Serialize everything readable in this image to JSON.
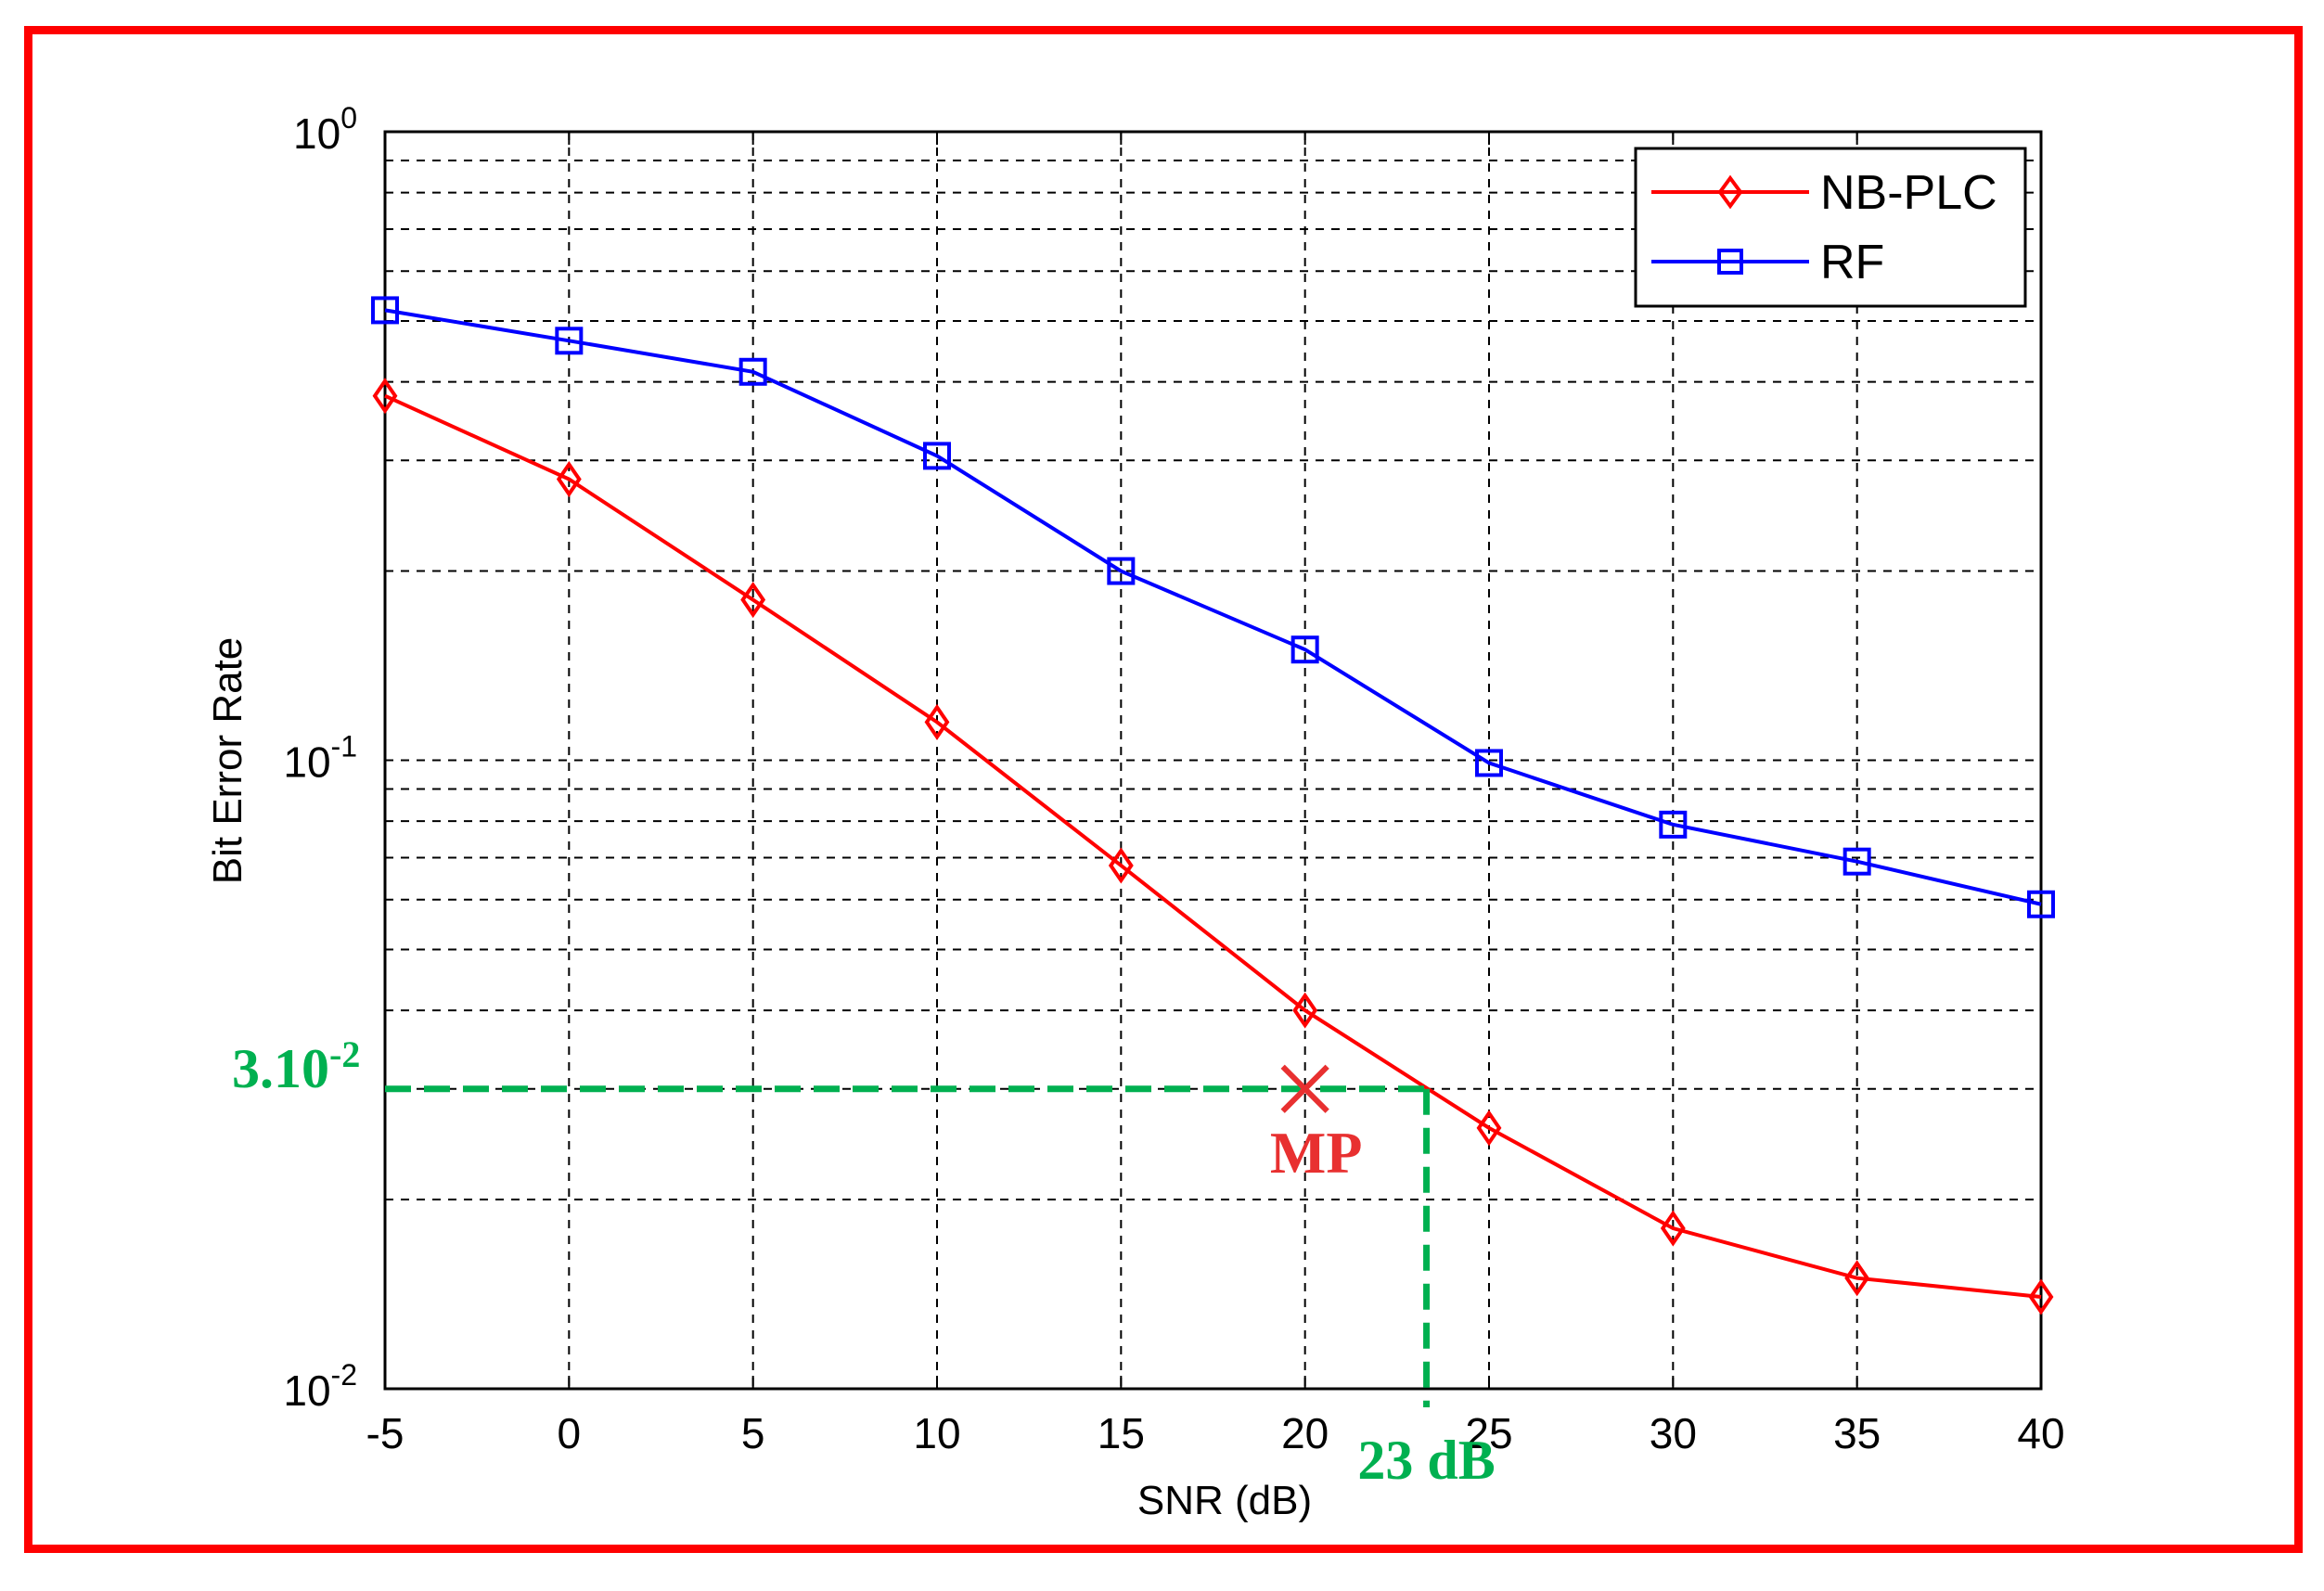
{
  "chart_data": {
    "type": "line",
    "xlabel": "SNR (dB)",
    "ylabel": "Bit Error Rate",
    "xlim": [
      -5,
      40
    ],
    "ylim": [
      0.01,
      1
    ],
    "yscale": "log",
    "grid": true,
    "legend_position": "top-right",
    "x": [
      -5,
      0,
      5,
      10,
      15,
      20,
      25,
      30,
      35,
      40
    ],
    "x_ticks": [
      "-5",
      "0",
      "5",
      "10",
      "15",
      "20",
      "25",
      "30",
      "35",
      "40"
    ],
    "y_ticks": [
      {
        "value": 1,
        "base": "10",
        "exp": "0"
      },
      {
        "value": 0.1,
        "base": "10",
        "exp": "-1"
      },
      {
        "value": 0.01,
        "base": "10",
        "exp": "-2"
      }
    ],
    "series": [
      {
        "name": "NB-PLC",
        "color": "#ff0000",
        "marker": "diamond",
        "values": [
          0.38,
          0.28,
          0.18,
          0.115,
          0.068,
          0.04,
          0.026,
          0.018,
          0.015,
          0.014
        ]
      },
      {
        "name": "RF",
        "color": "#0000ff",
        "marker": "square",
        "values": [
          0.52,
          0.465,
          0.415,
          0.305,
          0.2,
          0.15,
          0.099,
          0.079,
          0.069,
          0.059
        ]
      }
    ],
    "annotations": {
      "y_value_label": "3.10",
      "y_value_exp": "-2",
      "y_value": 0.03,
      "x_value_label": "23 dB",
      "x_value": 23.3,
      "point_label": "MP",
      "point_x": 20,
      "point_y": 0.03,
      "guide_color": "#00b050",
      "point_color": "#e83030"
    }
  }
}
